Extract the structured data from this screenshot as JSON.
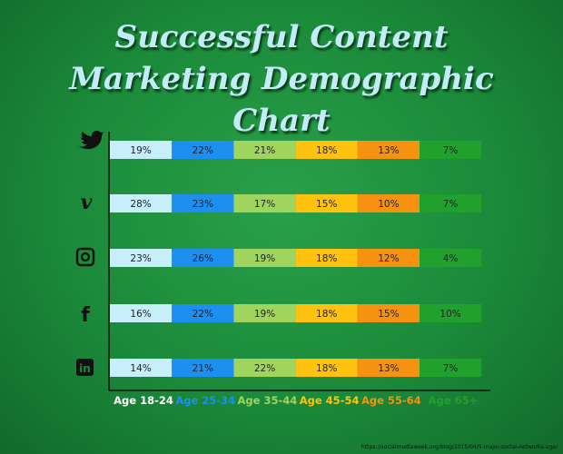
{
  "chart_data": {
    "type": "segmented-bar",
    "title": "Successful Content Marketing Demographic Chart",
    "source": "https://socialmediaweek.org/blog/2015/04/9-major-social-networks-age/",
    "categories": [
      null,
      null,
      null,
      null,
      null
    ],
    "series": [
      {
        "name": "Age 18-24",
        "color": "#c6eefb",
        "values": [
          19,
          28,
          23,
          16,
          14
        ],
        "value_labels": [
          "19%",
          "28%",
          "23%",
          "16%",
          "14%"
        ]
      },
      {
        "name": "Age 25-34",
        "color": "#1d8ff0",
        "values": [
          22,
          23,
          26,
          22,
          21
        ],
        "value_labels": [
          "22%",
          "23%",
          "26%",
          "22%",
          "21%"
        ]
      },
      {
        "name": "Age 35-44",
        "color": "#9fd45e",
        "values": [
          21,
          17,
          19,
          19,
          22
        ],
        "value_labels": [
          "21%",
          "17%",
          "19%",
          "19%",
          "22%"
        ]
      },
      {
        "name": "Age 45-54",
        "color": "#ffc20e",
        "values": [
          18,
          15,
          18,
          18,
          18
        ],
        "value_labels": [
          "18%",
          "15%",
          "18%",
          "18%",
          "18%"
        ]
      },
      {
        "name": "Age 55-64",
        "color": "#f5920f",
        "values": [
          13,
          10,
          12,
          15,
          13
        ],
        "value_labels": [
          "13%",
          "10%",
          "12%",
          "15%",
          "13%"
        ]
      },
      {
        "name": "Age 65+",
        "color": "#22a02e",
        "values": [
          7,
          7,
          4,
          10,
          7
        ],
        "value_labels": [
          "7%",
          "7%",
          "4%",
          "10%",
          "7%"
        ]
      }
    ]
  }
}
